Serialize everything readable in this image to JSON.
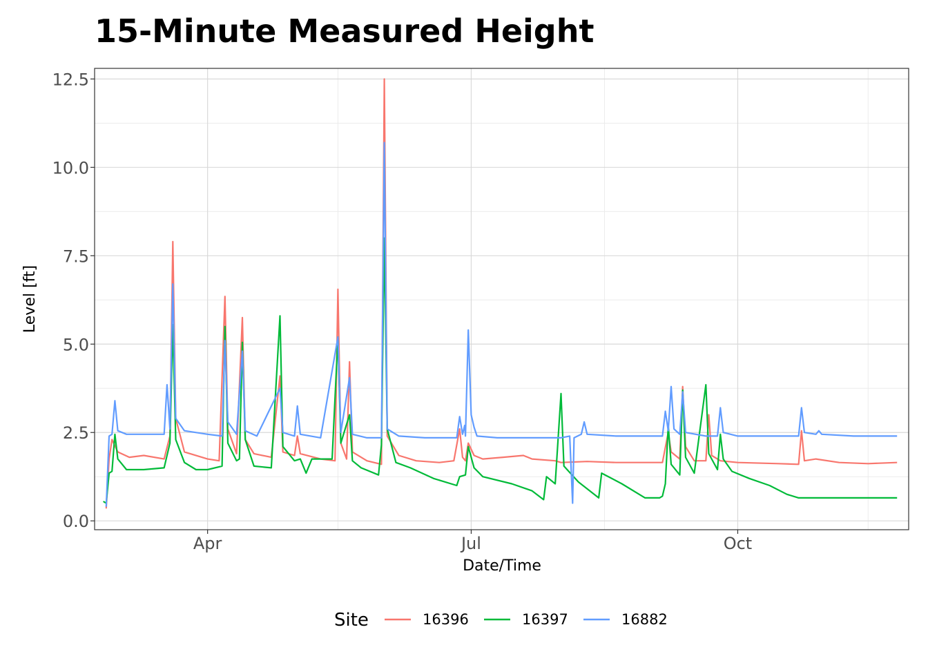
{
  "chart_data": {
    "type": "line",
    "title": "15-Minute Measured Height",
    "xlabel": "Date/Time",
    "ylabel": "Level [ft]",
    "x_range": [
      "2024-02-22",
      "2024-11-29"
    ],
    "ylim": [
      -0.25,
      12.8
    ],
    "y_ticks": [
      0.0,
      2.5,
      5.0,
      7.5,
      10.0,
      12.5
    ],
    "y_tick_labels": [
      "0.0",
      "2.5",
      "5.0",
      "7.5",
      "10.0",
      "12.5"
    ],
    "x_ticks": [
      "2024-04-01",
      "2024-07-01",
      "2024-10-01"
    ],
    "x_tick_labels": [
      "Apr",
      "Jul",
      "Oct"
    ],
    "x_minor_ticks": [
      "2024-02-15",
      "2024-05-16",
      "2024-08-16",
      "2024-11-15"
    ],
    "grid": true,
    "legend": {
      "title": "Site",
      "position": "bottom"
    },
    "series": [
      {
        "name": "16396",
        "color": "#F8766D",
        "points": [
          [
            "2024-02-26",
            0.35
          ],
          [
            "2024-02-27",
            1.75
          ],
          [
            "2024-02-28",
            2.3
          ],
          [
            "2024-03-01",
            1.95
          ],
          [
            "2024-03-05",
            1.8
          ],
          [
            "2024-03-10",
            1.85
          ],
          [
            "2024-03-17",
            1.75
          ],
          [
            "2024-03-19",
            2.4
          ],
          [
            "2024-03-20",
            7.9
          ],
          [
            "2024-03-21",
            2.9
          ],
          [
            "2024-03-24",
            1.95
          ],
          [
            "2024-04-01",
            1.75
          ],
          [
            "2024-04-05",
            1.7
          ],
          [
            "2024-04-07",
            6.35
          ],
          [
            "2024-04-08",
            2.6
          ],
          [
            "2024-04-11",
            1.9
          ],
          [
            "2024-04-13",
            5.75
          ],
          [
            "2024-04-14",
            2.3
          ],
          [
            "2024-04-17",
            1.9
          ],
          [
            "2024-04-23",
            1.8
          ],
          [
            "2024-04-26",
            4.1
          ],
          [
            "2024-04-27",
            1.95
          ],
          [
            "2024-05-01",
            1.85
          ],
          [
            "2024-05-02",
            2.4
          ],
          [
            "2024-05-03",
            1.9
          ],
          [
            "2024-05-10",
            1.75
          ],
          [
            "2024-05-15",
            1.7
          ],
          [
            "2024-05-16",
            6.55
          ],
          [
            "2024-05-17",
            2.2
          ],
          [
            "2024-05-19",
            1.75
          ],
          [
            "2024-05-20",
            4.5
          ],
          [
            "2024-05-21",
            1.95
          ],
          [
            "2024-05-26",
            1.7
          ],
          [
            "2024-05-31",
            1.6
          ],
          [
            "2024-06-01",
            12.5
          ],
          [
            "2024-06-02",
            2.4
          ],
          [
            "2024-06-06",
            1.85
          ],
          [
            "2024-06-12",
            1.7
          ],
          [
            "2024-06-20",
            1.65
          ],
          [
            "2024-06-25",
            1.7
          ],
          [
            "2024-06-27",
            2.6
          ],
          [
            "2024-06-28",
            1.8
          ],
          [
            "2024-06-29",
            1.7
          ],
          [
            "2024-06-30",
            2.2
          ],
          [
            "2024-07-02",
            1.85
          ],
          [
            "2024-07-05",
            1.75
          ],
          [
            "2024-07-12",
            1.8
          ],
          [
            "2024-07-19",
            1.85
          ],
          [
            "2024-07-22",
            1.75
          ],
          [
            "2024-07-30",
            1.7
          ],
          [
            "2024-08-01",
            1.65
          ],
          [
            "2024-08-10",
            1.68
          ],
          [
            "2024-08-20",
            1.65
          ],
          [
            "2024-08-30",
            1.65
          ],
          [
            "2024-09-05",
            1.65
          ],
          [
            "2024-09-07",
            2.5
          ],
          [
            "2024-09-08",
            1.95
          ],
          [
            "2024-09-11",
            1.75
          ],
          [
            "2024-09-12",
            3.8
          ],
          [
            "2024-09-13",
            2.1
          ],
          [
            "2024-09-16",
            1.7
          ],
          [
            "2024-09-20",
            1.7
          ],
          [
            "2024-09-21",
            3.0
          ],
          [
            "2024-09-22",
            1.85
          ],
          [
            "2024-09-25",
            1.7
          ],
          [
            "2024-10-01",
            1.65
          ],
          [
            "2024-10-15",
            1.62
          ],
          [
            "2024-10-22",
            1.6
          ],
          [
            "2024-10-23",
            2.55
          ],
          [
            "2024-10-24",
            1.7
          ],
          [
            "2024-10-28",
            1.75
          ],
          [
            "2024-11-05",
            1.65
          ],
          [
            "2024-11-15",
            1.62
          ],
          [
            "2024-11-25",
            1.65
          ]
        ]
      },
      {
        "name": "16397",
        "color": "#00BA38",
        "points": [
          [
            "2024-02-25",
            0.55
          ],
          [
            "2024-02-26",
            0.5
          ],
          [
            "2024-02-27",
            1.35
          ],
          [
            "2024-02-28",
            1.4
          ],
          [
            "2024-02-29",
            2.45
          ],
          [
            "2024-03-01",
            1.75
          ],
          [
            "2024-03-04",
            1.45
          ],
          [
            "2024-03-10",
            1.45
          ],
          [
            "2024-03-17",
            1.5
          ],
          [
            "2024-03-19",
            2.2
          ],
          [
            "2024-03-20",
            5.55
          ],
          [
            "2024-03-21",
            2.3
          ],
          [
            "2024-03-24",
            1.65
          ],
          [
            "2024-03-28",
            1.45
          ],
          [
            "2024-04-01",
            1.45
          ],
          [
            "2024-04-06",
            1.55
          ],
          [
            "2024-04-07",
            5.5
          ],
          [
            "2024-04-08",
            2.2
          ],
          [
            "2024-04-11",
            1.7
          ],
          [
            "2024-04-12",
            1.75
          ],
          [
            "2024-04-13",
            5.05
          ],
          [
            "2024-04-14",
            2.3
          ],
          [
            "2024-04-17",
            1.55
          ],
          [
            "2024-04-23",
            1.5
          ],
          [
            "2024-04-26",
            5.8
          ],
          [
            "2024-04-27",
            2.1
          ],
          [
            "2024-05-01",
            1.7
          ],
          [
            "2024-05-03",
            1.75
          ],
          [
            "2024-05-05",
            1.35
          ],
          [
            "2024-05-07",
            1.75
          ],
          [
            "2024-05-14",
            1.75
          ],
          [
            "2024-05-16",
            5.2
          ],
          [
            "2024-05-17",
            2.2
          ],
          [
            "2024-05-20",
            3.0
          ],
          [
            "2024-05-21",
            1.7
          ],
          [
            "2024-05-24",
            1.5
          ],
          [
            "2024-05-30",
            1.3
          ],
          [
            "2024-05-31",
            2.15
          ],
          [
            "2024-06-01",
            8.0
          ],
          [
            "2024-06-02",
            2.6
          ],
          [
            "2024-06-05",
            1.65
          ],
          [
            "2024-06-10",
            1.5
          ],
          [
            "2024-06-18",
            1.2
          ],
          [
            "2024-06-26",
            1.0
          ],
          [
            "2024-06-27",
            1.25
          ],
          [
            "2024-06-29",
            1.3
          ],
          [
            "2024-06-30",
            2.1
          ],
          [
            "2024-07-02",
            1.5
          ],
          [
            "2024-07-05",
            1.25
          ],
          [
            "2024-07-15",
            1.05
          ],
          [
            "2024-07-22",
            0.85
          ],
          [
            "2024-07-26",
            0.6
          ],
          [
            "2024-07-27",
            1.25
          ],
          [
            "2024-07-30",
            1.05
          ],
          [
            "2024-08-01",
            3.6
          ],
          [
            "2024-08-02",
            1.55
          ],
          [
            "2024-08-07",
            1.1
          ],
          [
            "2024-08-14",
            0.65
          ],
          [
            "2024-08-15",
            1.35
          ],
          [
            "2024-08-22",
            1.05
          ],
          [
            "2024-08-30",
            0.65
          ],
          [
            "2024-09-04",
            0.65
          ],
          [
            "2024-09-05",
            0.7
          ],
          [
            "2024-09-06",
            1.05
          ],
          [
            "2024-09-07",
            2.7
          ],
          [
            "2024-09-08",
            1.6
          ],
          [
            "2024-09-11",
            1.3
          ],
          [
            "2024-09-12",
            3.7
          ],
          [
            "2024-09-13",
            1.8
          ],
          [
            "2024-09-16",
            1.35
          ],
          [
            "2024-09-20",
            3.85
          ],
          [
            "2024-09-21",
            1.9
          ],
          [
            "2024-09-24",
            1.45
          ],
          [
            "2024-09-25",
            2.45
          ],
          [
            "2024-09-26",
            1.75
          ],
          [
            "2024-09-29",
            1.4
          ],
          [
            "2024-10-05",
            1.2
          ],
          [
            "2024-10-12",
            1.0
          ],
          [
            "2024-10-18",
            0.75
          ],
          [
            "2024-10-22",
            0.65
          ],
          [
            "2024-11-01",
            0.65
          ],
          [
            "2024-11-25",
            0.65
          ]
        ]
      },
      {
        "name": "16882",
        "color": "#619CFF",
        "points": [
          [
            "2024-02-26",
            0.4
          ],
          [
            "2024-02-27",
            2.4
          ],
          [
            "2024-02-28",
            2.45
          ],
          [
            "2024-02-29",
            3.4
          ],
          [
            "2024-03-01",
            2.55
          ],
          [
            "2024-03-04",
            2.45
          ],
          [
            "2024-03-10",
            2.45
          ],
          [
            "2024-03-17",
            2.45
          ],
          [
            "2024-03-18",
            3.85
          ],
          [
            "2024-03-19",
            2.6
          ],
          [
            "2024-03-20",
            6.7
          ],
          [
            "2024-03-21",
            2.9
          ],
          [
            "2024-03-24",
            2.55
          ],
          [
            "2024-04-01",
            2.45
          ],
          [
            "2024-04-06",
            2.4
          ],
          [
            "2024-04-07",
            5.1
          ],
          [
            "2024-04-08",
            2.8
          ],
          [
            "2024-04-11",
            2.45
          ],
          [
            "2024-04-13",
            4.8
          ],
          [
            "2024-04-14",
            2.55
          ],
          [
            "2024-04-18",
            2.4
          ],
          [
            "2024-04-26",
            3.75
          ],
          [
            "2024-04-27",
            2.5
          ],
          [
            "2024-05-01",
            2.4
          ],
          [
            "2024-05-02",
            3.25
          ],
          [
            "2024-05-03",
            2.45
          ],
          [
            "2024-05-10",
            2.35
          ],
          [
            "2024-05-16",
            5.2
          ],
          [
            "2024-05-17",
            2.5
          ],
          [
            "2024-05-20",
            4.05
          ],
          [
            "2024-05-21",
            2.45
          ],
          [
            "2024-05-26",
            2.35
          ],
          [
            "2024-05-31",
            2.35
          ],
          [
            "2024-06-01",
            10.7
          ],
          [
            "2024-06-02",
            2.6
          ],
          [
            "2024-06-06",
            2.4
          ],
          [
            "2024-06-15",
            2.35
          ],
          [
            "2024-06-26",
            2.35
          ],
          [
            "2024-06-27",
            2.95
          ],
          [
            "2024-06-28",
            2.45
          ],
          [
            "2024-06-28T18:00",
            2.7
          ],
          [
            "2024-06-29",
            2.4
          ],
          [
            "2024-06-30",
            5.4
          ],
          [
            "2024-07-01",
            3.0
          ],
          [
            "2024-07-02",
            2.65
          ],
          [
            "2024-07-03",
            2.4
          ],
          [
            "2024-07-10",
            2.35
          ],
          [
            "2024-07-20",
            2.35
          ],
          [
            "2024-08-01",
            2.35
          ],
          [
            "2024-08-04",
            2.4
          ],
          [
            "2024-08-05",
            0.5
          ],
          [
            "2024-08-05T12:00",
            2.35
          ],
          [
            "2024-08-08",
            2.45
          ],
          [
            "2024-08-09",
            2.8
          ],
          [
            "2024-08-10",
            2.45
          ],
          [
            "2024-08-20",
            2.4
          ],
          [
            "2024-09-05",
            2.4
          ],
          [
            "2024-09-06",
            3.1
          ],
          [
            "2024-09-07",
            2.55
          ],
          [
            "2024-09-08",
            3.8
          ],
          [
            "2024-09-09",
            2.6
          ],
          [
            "2024-09-11",
            2.45
          ],
          [
            "2024-09-12",
            3.65
          ],
          [
            "2024-09-13",
            2.5
          ],
          [
            "2024-09-20",
            2.4
          ],
          [
            "2024-09-24",
            2.4
          ],
          [
            "2024-09-25",
            3.2
          ],
          [
            "2024-09-26",
            2.5
          ],
          [
            "2024-10-01",
            2.4
          ],
          [
            "2024-10-22",
            2.4
          ],
          [
            "2024-10-23",
            3.2
          ],
          [
            "2024-10-24",
            2.5
          ],
          [
            "2024-10-28",
            2.45
          ],
          [
            "2024-10-29",
            2.55
          ],
          [
            "2024-10-30",
            2.45
          ],
          [
            "2024-11-10",
            2.4
          ],
          [
            "2024-11-25",
            2.4
          ]
        ]
      }
    ]
  }
}
